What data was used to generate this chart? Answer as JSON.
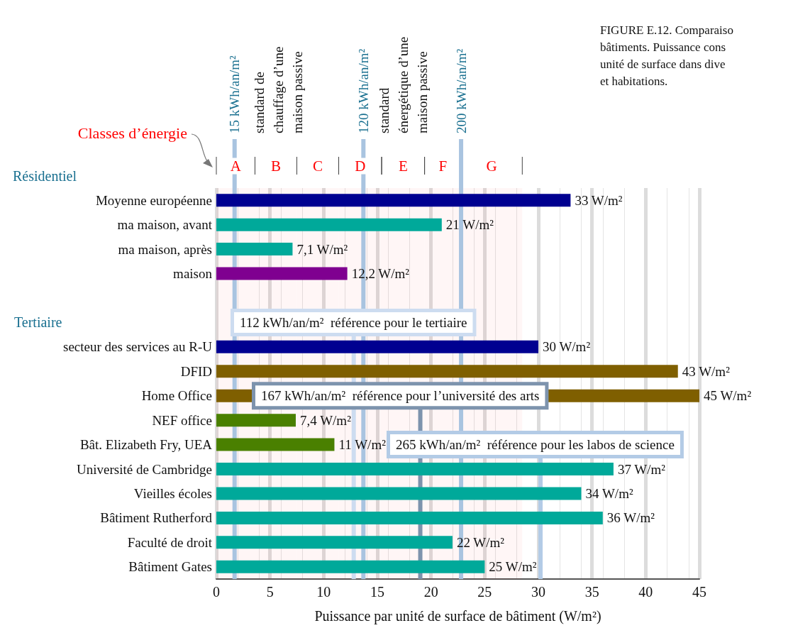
{
  "chart_data": {
    "type": "bar",
    "orientation": "horizontal",
    "categories": [
      "Moyenne européenne",
      "ma maison, avant",
      "ma maison, après",
      "maison",
      null,
      null,
      "secteur des services au R-U",
      "DFID",
      "Home Office",
      "NEF office",
      "Bât. Elizabeth Fry, UEA",
      "Université de Cambridge",
      "Vieilles écoles",
      "Bâtiment Rutherford",
      "Faculté de droit",
      "Bâtiment Gates"
    ],
    "values": [
      33,
      21,
      7.1,
      12.2,
      null,
      null,
      30,
      43,
      45,
      7.4,
      11,
      37,
      34,
      36,
      22,
      25
    ],
    "colors": [
      "#000090",
      "#00a99a",
      "#00a99a",
      "#7f0090",
      null,
      null,
      "#000090",
      "#7f5f00",
      "#7f5f00",
      "#4a8000",
      "#4a8000",
      "#00a99a",
      "#00a99a",
      "#00a99a",
      "#00a99a",
      "#00a99a"
    ],
    "value_labels": [
      "33 W/m²",
      "21 W/m²",
      "7,1 W/m²",
      "12,2 W/m²",
      null,
      null,
      "30 W/m²",
      "43 W/m²",
      "45 W/m²",
      "7,4 W/m²",
      "11 W/m²",
      "37 W/m²",
      "34 W/m²",
      "36 W/m²",
      "22 W/m²",
      "25 W/m²"
    ],
    "xlabel": "Puissance par unité de surface de bâtiment (W/m²)",
    "xlim": [
      0,
      45
    ],
    "xticks": [
      0,
      5,
      10,
      15,
      20,
      25,
      30,
      35,
      40,
      45
    ],
    "grid": "x",
    "ref_lines": [
      {
        "axis": "x",
        "value": 1.7,
        "label": "15 kWh/an/m²",
        "color": "#a9c4e0"
      },
      {
        "axis": "x",
        "value": 13.7,
        "label": "120 kWh/an/m²",
        "color": "#a9c4e0"
      },
      {
        "axis": "x",
        "value": 22.8,
        "label": "200 kWh/an/m²",
        "color": "#a9c4e0"
      },
      {
        "axis": "x",
        "value": 12.8,
        "label": "112 kWh/an/m²  référence pour le tertiaire",
        "color": "#cddcf0"
      },
      {
        "axis": "x",
        "value": 19.0,
        "label": "167 kWh/an/m²  référence pour l’université des arts",
        "color": "#7d93ad"
      },
      {
        "axis": "x",
        "value": 30.2,
        "label": "265 kWh/an/m²  référence pour les labos de science",
        "color": "#b3cbe6"
      }
    ],
    "bands": [
      {
        "axis": "x",
        "from": 0,
        "to": 3.6,
        "label": "A",
        "color": "#ff0000"
      },
      {
        "axis": "x",
        "from": 3.6,
        "to": 7.5,
        "label": "B",
        "color": "#ff0000"
      },
      {
        "axis": "x",
        "from": 7.5,
        "to": 11.4,
        "label": "C",
        "color": "#ff0000"
      },
      {
        "axis": "x",
        "from": 11.4,
        "to": 15.4,
        "label": "D",
        "color": "#ff0000"
      },
      {
        "axis": "x",
        "from": 15.4,
        "to": 19.4,
        "label": "E",
        "color": "#ff0000"
      },
      {
        "axis": "x",
        "from": 19.4,
        "to": 22.8,
        "label": "F",
        "color": "#ff0000"
      },
      {
        "axis": "x",
        "from": 22.8,
        "to": 28.5,
        "label": "G",
        "color": "#ff0000"
      }
    ],
    "annotations": [
      "Résidentiel",
      "Tertiaire",
      "standard de\nchauffage d’une\nmaison passive",
      "standard\nénergétique d’une\nmaison passive",
      "Classes d’énergie",
      "FIGURE E.12. Comparaiso\nbâtiments. Puissance cons\nunité de surface dans dive\net habitations."
    ]
  }
}
